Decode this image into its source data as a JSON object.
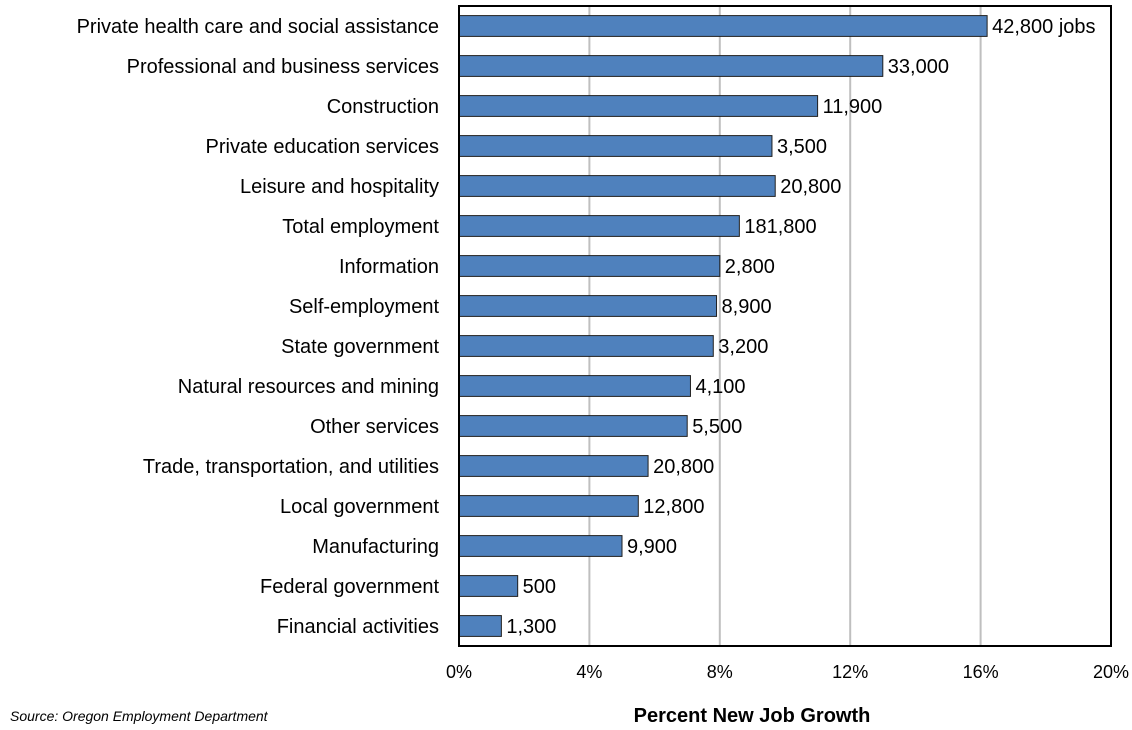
{
  "chart_data": {
    "type": "bar",
    "orientation": "horizontal",
    "categories": [
      "Private health care and social assistance",
      "Professional and business services",
      "Construction",
      "Private education services",
      "Leisure and hospitality",
      "Total employment",
      "Information",
      "Self-employment",
      "State government",
      "Natural resources and mining",
      "Other services",
      "Trade, transportation, and utilities",
      "Local government",
      "Manufacturing",
      "Federal government",
      "Financial activities"
    ],
    "values": [
      16.2,
      13.0,
      11.0,
      9.6,
      9.7,
      8.6,
      8.0,
      7.9,
      7.8,
      7.1,
      7.0,
      5.8,
      5.5,
      5.0,
      1.8,
      1.3
    ],
    "data_labels": [
      "42,800 jobs",
      "33,000",
      "11,900",
      "3,500",
      "20,800",
      "181,800",
      "2,800",
      "8,900",
      "3,200",
      "4,100",
      "5,500",
      "20,800",
      "12,800",
      "9,900",
      "500",
      "1,300"
    ],
    "xlim": [
      0,
      20
    ],
    "xticks": [
      "0%",
      "4%",
      "8%",
      "12%",
      "16%",
      "20%"
    ],
    "xlabel": "Percent New Job Growth",
    "ylabel": "",
    "title": "",
    "grid": "vertical",
    "bar_color": "#4F81BD",
    "bar_edge_color": "#1F1F1F",
    "grid_color": "#BFBFBF",
    "source_note": "Source: Oregon Employment Department"
  }
}
